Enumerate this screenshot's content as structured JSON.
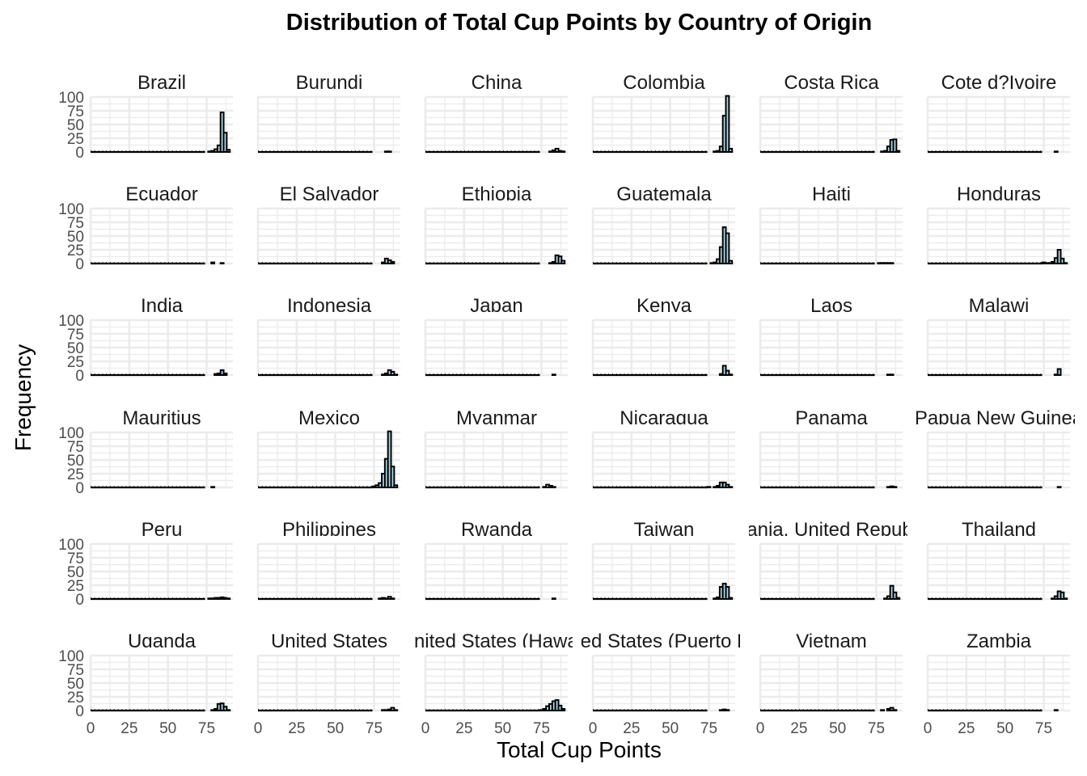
{
  "chart_data": {
    "type": "bar",
    "title": "Distribution of Total Cup Points by Country of Origin",
    "xlabel": "Total Cup Points",
    "ylabel": "Frequency",
    "xlim": [
      0,
      92
    ],
    "ylim": [
      0,
      100
    ],
    "x_ticks": [
      "0",
      "25",
      "50",
      "75"
    ],
    "y_ticks": [
      "0",
      "25",
      "50",
      "75",
      "100"
    ],
    "bin_centers": [
      75,
      77,
      79,
      81,
      83,
      85,
      87,
      89
    ],
    "fill_color": "#add8e6",
    "grid": true,
    "layout": "facet-wrap 6 columns",
    "facets": [
      {
        "name": "Brazil",
        "values": [
          0,
          1,
          2,
          5,
          12,
          72,
          35,
          4
        ]
      },
      {
        "name": "Burundi",
        "values": [
          0,
          0,
          0,
          0,
          1,
          1,
          0,
          0
        ]
      },
      {
        "name": "China",
        "values": [
          0,
          0,
          0,
          1,
          3,
          6,
          2,
          1
        ]
      },
      {
        "name": "Colombia",
        "values": [
          0,
          0,
          1,
          2,
          10,
          66,
          102,
          6
        ]
      },
      {
        "name": "Costa Rica",
        "values": [
          0,
          0,
          1,
          2,
          10,
          22,
          23,
          2
        ]
      },
      {
        "name": "Cote d?Ivoire",
        "values": [
          0,
          0,
          0,
          0,
          1,
          0,
          0,
          0
        ]
      },
      {
        "name": "Ecuador",
        "values": [
          0,
          0,
          2,
          0,
          0,
          1,
          0,
          0
        ]
      },
      {
        "name": "El Salvador",
        "values": [
          0,
          0,
          0,
          2,
          9,
          6,
          3,
          0
        ]
      },
      {
        "name": "Ethiopia",
        "values": [
          0,
          0,
          0,
          1,
          3,
          15,
          13,
          5
        ]
      },
      {
        "name": "Guatemala",
        "values": [
          0,
          1,
          2,
          8,
          30,
          66,
          55,
          5
        ]
      },
      {
        "name": "Haiti",
        "values": [
          0,
          1,
          1,
          1,
          1,
          1,
          0,
          0
        ]
      },
      {
        "name": "Honduras",
        "values": [
          2,
          1,
          1,
          3,
          10,
          25,
          9,
          1
        ]
      },
      {
        "name": "India",
        "values": [
          0,
          0,
          0,
          2,
          3,
          9,
          3,
          0
        ]
      },
      {
        "name": "Indonesia",
        "values": [
          0,
          0,
          0,
          1,
          3,
          9,
          6,
          1
        ]
      },
      {
        "name": "Japan",
        "values": [
          0,
          0,
          0,
          0,
          1,
          0,
          0,
          0
        ]
      },
      {
        "name": "Kenya",
        "values": [
          0,
          0,
          0,
          0,
          2,
          17,
          8,
          1
        ]
      },
      {
        "name": "Laos",
        "values": [
          0,
          0,
          0,
          0,
          1,
          1,
          0,
          0
        ]
      },
      {
        "name": "Malawi",
        "values": [
          0,
          0,
          0,
          0,
          1,
          11,
          0,
          0
        ]
      },
      {
        "name": "Mauritius",
        "values": [
          0,
          0,
          1,
          0,
          0,
          0,
          0,
          0
        ]
      },
      {
        "name": "Mexico",
        "values": [
          2,
          4,
          8,
          25,
          52,
          102,
          38,
          4
        ]
      },
      {
        "name": "Myanmar",
        "values": [
          0,
          1,
          5,
          3,
          1,
          0,
          0,
          0
        ]
      },
      {
        "name": "Nicaragua",
        "values": [
          1,
          0,
          1,
          3,
          9,
          9,
          5,
          1
        ]
      },
      {
        "name": "Panama",
        "values": [
          0,
          0,
          0,
          0,
          1,
          2,
          1,
          0
        ]
      },
      {
        "name": "Papua New Guinea",
        "values": [
          0,
          0,
          0,
          0,
          0,
          1,
          0,
          0
        ]
      },
      {
        "name": "Peru",
        "values": [
          0,
          1,
          1,
          2,
          2,
          3,
          2,
          1
        ]
      },
      {
        "name": "Philippines",
        "values": [
          0,
          0,
          1,
          2,
          1,
          4,
          1,
          0
        ]
      },
      {
        "name": "Rwanda",
        "values": [
          0,
          0,
          0,
          0,
          1,
          0,
          0,
          0
        ]
      },
      {
        "name": "Taiwan",
        "values": [
          0,
          0,
          1,
          3,
          22,
          28,
          22,
          2
        ]
      },
      {
        "name": "Tanzania, United Republic Of",
        "values": [
          0,
          0,
          0,
          1,
          5,
          24,
          12,
          2
        ]
      },
      {
        "name": "Thailand",
        "values": [
          0,
          0,
          0,
          1,
          5,
          14,
          12,
          1
        ]
      },
      {
        "name": "Uganda",
        "values": [
          0,
          0,
          1,
          3,
          12,
          13,
          7,
          1
        ]
      },
      {
        "name": "United States",
        "values": [
          0,
          0,
          0,
          1,
          1,
          2,
          5,
          1
        ]
      },
      {
        "name": "United States (Hawaii)",
        "values": [
          1,
          3,
          8,
          12,
          17,
          19,
          9,
          3
        ]
      },
      {
        "name": "United States (Puerto Rico)",
        "values": [
          0,
          0,
          0,
          0,
          1,
          2,
          1,
          0
        ]
      },
      {
        "name": "Vietnam",
        "values": [
          0,
          0,
          1,
          0,
          3,
          5,
          1,
          0
        ]
      },
      {
        "name": "Zambia",
        "values": [
          0,
          0,
          0,
          0,
          1,
          0,
          0,
          0
        ]
      }
    ]
  }
}
